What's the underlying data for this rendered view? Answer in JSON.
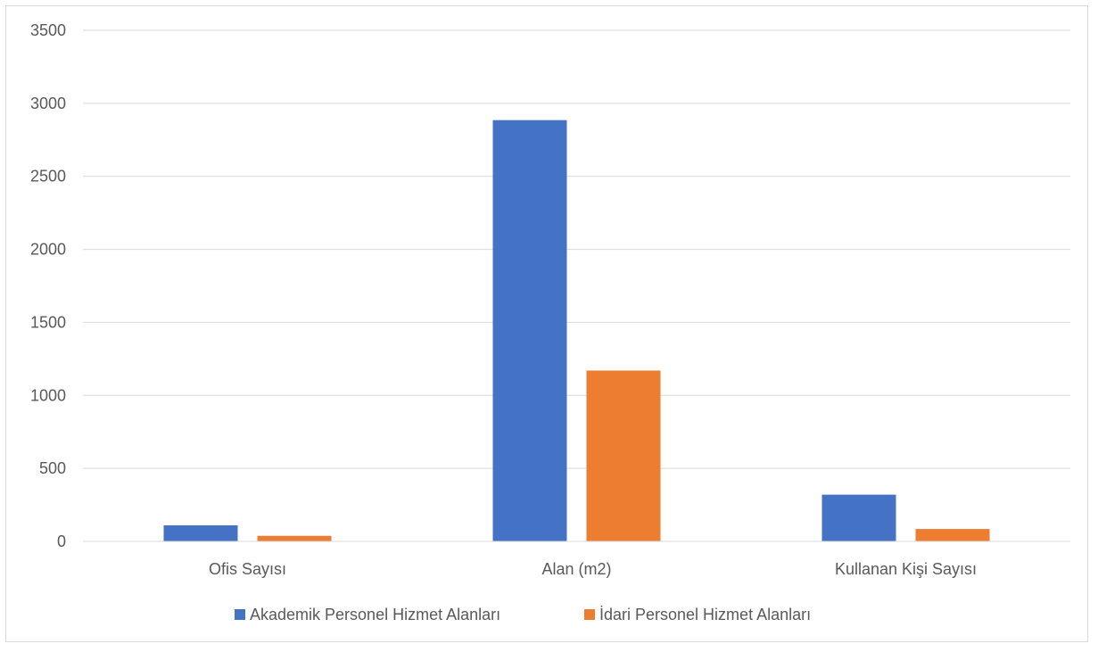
{
  "chart_data": {
    "type": "bar",
    "categories": [
      "Ofis Sayısı",
      "Alan (m2)",
      "Kullanan Kişi Sayısı"
    ],
    "series": [
      {
        "name": "Akademik Personel Hizmet Alanları",
        "color": "#4472c4",
        "values": [
          110,
          2885,
          320
        ]
      },
      {
        "name": "İdari Personel Hizmet Alanları",
        "color": "#ed7d31",
        "values": [
          38,
          1170,
          85
        ]
      }
    ],
    "ylim": [
      0,
      3500
    ],
    "yticks": [
      "0",
      "500",
      "1000",
      "1500",
      "2000",
      "2500",
      "3000",
      "3500"
    ],
    "grid": true,
    "legend_position": "bottom"
  }
}
